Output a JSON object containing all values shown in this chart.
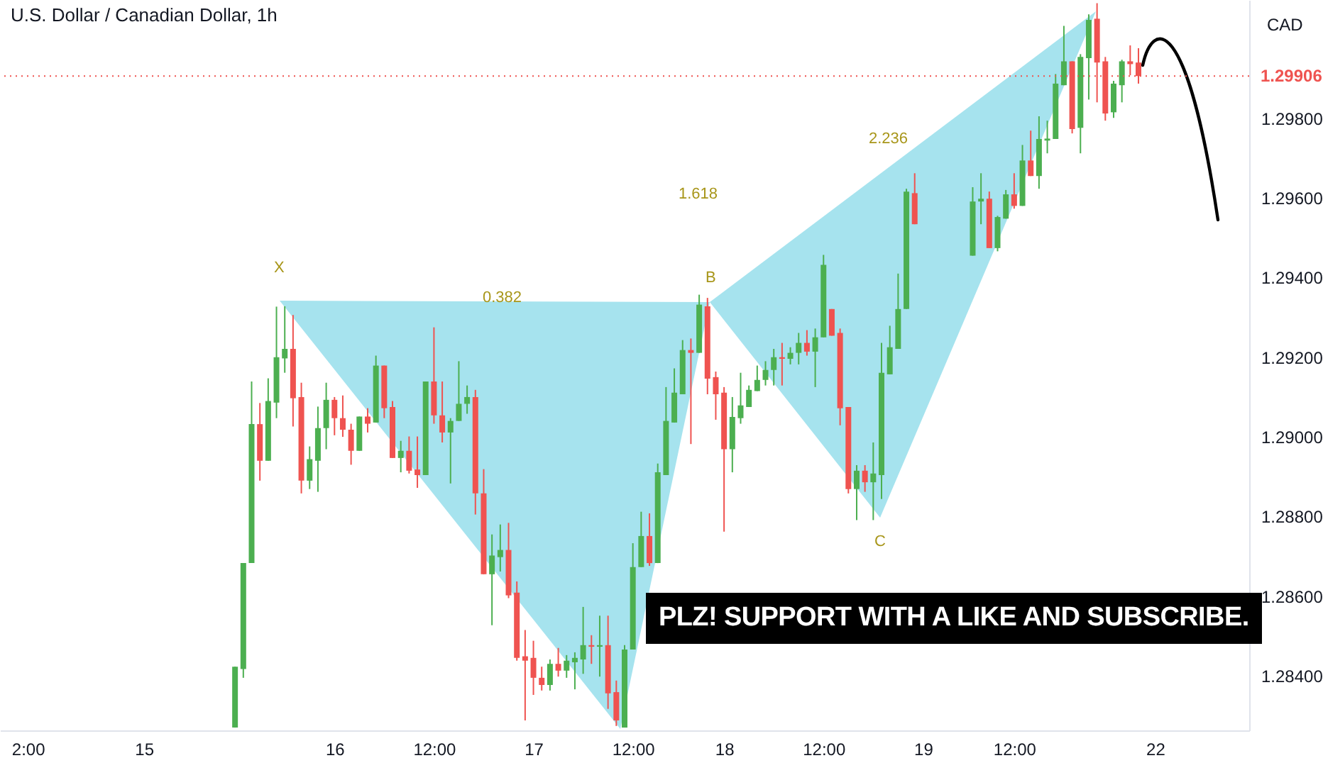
{
  "chart_data": {
    "type": "candlestick",
    "title": "U.S. Dollar / Canadian Dollar, 1h",
    "ylabel": "CAD",
    "categories": [
      null,
      null,
      "2:00",
      null,
      null,
      null,
      null,
      null,
      null,
      null,
      null,
      null,
      null,
      null,
      null,
      null,
      "15",
      null,
      null,
      null,
      null,
      null,
      null,
      null,
      null,
      null,
      null,
      null,
      null,
      null,
      null,
      null,
      null,
      null,
      null,
      null,
      null,
      null,
      null,
      "16",
      null,
      null,
      null,
      null,
      null,
      null,
      null,
      null,
      null,
      null,
      null,
      "12:00",
      null,
      null,
      null,
      null,
      null,
      null,
      null,
      null,
      null,
      null,
      null,
      "17",
      null,
      null,
      null,
      null,
      null,
      null,
      null,
      null,
      null,
      null,
      null,
      "12:00",
      null,
      null,
      null,
      null,
      null,
      null,
      null,
      null,
      null,
      null,
      "18",
      null,
      null,
      null,
      null,
      null,
      null,
      null,
      null,
      null,
      null,
      null,
      "12:00",
      null,
      null,
      null,
      null,
      null,
      null,
      null,
      null,
      null,
      null,
      null,
      "19",
      null,
      null,
      null,
      null,
      null,
      null,
      null,
      null,
      null,
      null,
      "12:00",
      null,
      null,
      null,
      null,
      null,
      null,
      null,
      null,
      null,
      null,
      null,
      null,
      null,
      null,
      null,
      null,
      "22",
      null,
      null,
      null,
      null,
      null,
      null,
      null,
      null,
      null,
      null
    ],
    "ohlc": [
      null,
      null,
      null,
      null,
      null,
      null,
      null,
      null,
      null,
      null,
      null,
      null,
      null,
      null,
      null,
      null,
      null,
      null,
      null,
      null,
      null,
      null,
      null,
      null,
      null,
      null,
      null,
      [
        1.2827,
        1.28423,
        1.2827,
        1.28423
      ],
      [
        1.28417,
        1.28683,
        1.28395,
        1.28683
      ],
      [
        1.28683,
        1.29139,
        1.28683,
        1.29032
      ],
      [
        1.29032,
        1.29085,
        1.2889,
        1.2894
      ],
      [
        1.2894,
        1.29147,
        1.2894,
        1.2909
      ],
      [
        1.29086,
        1.29327,
        1.29047,
        1.292
      ],
      [
        1.29197,
        1.29328,
        1.29161,
        1.29221
      ],
      [
        1.29221,
        1.29306,
        1.29026,
        1.29097
      ],
      [
        1.291,
        1.29136,
        1.28858,
        1.2889
      ],
      [
        1.2889,
        1.28976,
        1.28869,
        1.28944
      ],
      [
        1.2894,
        1.29076,
        1.28862,
        1.29022
      ],
      [
        1.29022,
        1.29136,
        1.28969,
        1.29093
      ],
      [
        1.29093,
        1.291,
        1.29004,
        1.29047
      ],
      [
        1.29047,
        1.29104,
        1.29,
        1.29018
      ],
      [
        1.29018,
        1.29033,
        1.2893,
        1.28965
      ],
      [
        1.28965,
        1.29051,
        1.28965,
        1.29051
      ],
      [
        1.29051,
        1.29072,
        1.29011,
        1.29033
      ],
      [
        1.29036,
        1.29204,
        1.29036,
        1.29179
      ],
      [
        1.29179,
        1.29179,
        1.29047,
        1.29072
      ],
      [
        1.29075,
        1.2909,
        1.28947,
        1.28947
      ],
      [
        1.28947,
        1.2899,
        1.28911,
        1.28965
      ],
      [
        1.28965,
        1.29001,
        1.28908,
        1.28915
      ],
      [
        1.28918,
        1.29001,
        1.28872,
        1.28904
      ],
      [
        1.28904,
        1.29139,
        1.28904,
        1.29139
      ],
      [
        1.29139,
        1.29275,
        1.29033,
        1.29054
      ],
      [
        1.29054,
        1.29139,
        1.28986,
        1.29011
      ],
      [
        1.29011,
        1.29047,
        1.28883,
        1.2904
      ],
      [
        1.2904,
        1.2919,
        1.2904,
        1.29083
      ],
      [
        1.29083,
        1.29129,
        1.29058,
        1.291
      ],
      [
        1.291,
        1.29118,
        1.28805,
        1.28858
      ],
      [
        1.28858,
        1.28919,
        1.28655,
        1.28655
      ],
      [
        1.28655,
        1.28755,
        1.28527,
        1.28702
      ],
      [
        1.28698,
        1.2878,
        1.28662,
        1.28716
      ],
      [
        1.28716,
        1.28784,
        1.28595,
        1.28602
      ],
      [
        1.28609,
        1.28637,
        1.28438,
        1.28445
      ],
      [
        1.28449,
        1.28515,
        1.28288,
        1.28438
      ],
      [
        1.28445,
        1.28488,
        1.28352,
        1.28395
      ],
      [
        1.28395,
        1.28423,
        1.28363,
        1.28377
      ],
      [
        1.28377,
        1.28441,
        1.28363,
        1.2843
      ],
      [
        1.2843,
        1.2847,
        1.28398,
        1.28413
      ],
      [
        1.28413,
        1.28452,
        1.28395,
        1.28438
      ],
      [
        1.28434,
        1.28459,
        1.28366,
        1.28445
      ],
      [
        1.28441,
        1.28573,
        1.28405,
        1.28477
      ],
      [
        1.28477,
        1.28502,
        1.2843,
        1.28473
      ],
      [
        1.28473,
        1.28551,
        1.28398,
        1.28477
      ],
      [
        1.28477,
        1.28551,
        1.28317,
        1.28356
      ],
      [
        1.28359,
        1.28388,
        1.28274,
        1.28288
      ],
      [
        1.2827,
        1.28477,
        1.2827,
        1.28466
      ],
      [
        1.28466,
        1.28733,
        1.28466,
        1.28673
      ],
      [
        1.28673,
        1.28812,
        1.28673,
        1.28751
      ],
      [
        1.28751,
        1.28808,
        1.28676,
        1.28683
      ],
      [
        1.28683,
        1.28933,
        1.28683,
        1.28911
      ],
      [
        1.28904,
        1.29125,
        1.28904,
        1.2904
      ],
      [
        1.29036,
        1.29172,
        1.29036,
        1.29111
      ],
      [
        1.29107,
        1.29243,
        1.29107,
        1.29218
      ],
      [
        1.29218,
        1.29247,
        1.28982,
        1.29211
      ],
      [
        1.29211,
        1.29357,
        1.29211,
        1.29332
      ],
      [
        1.29328,
        1.29349,
        1.29107,
        1.29146
      ],
      [
        1.2915,
        1.29164,
        1.29043,
        1.29107
      ],
      [
        1.29111,
        1.29125,
        1.28762,
        1.28969
      ],
      [
        1.28969,
        1.291,
        1.28911,
        1.2905
      ],
      [
        1.29047,
        1.29161,
        1.29033,
        1.29079
      ],
      [
        1.29075,
        1.29129,
        1.29075,
        1.29118
      ],
      [
        1.29115,
        1.29179,
        1.29115,
        1.29143
      ],
      [
        1.29143,
        1.2919,
        1.29129,
        1.29168
      ],
      [
        1.29168,
        1.29221,
        1.29129,
        1.292
      ],
      [
        1.292,
        1.29236,
        1.29129,
        1.29196
      ],
      [
        1.29196,
        1.29225,
        1.29182,
        1.29211
      ],
      [
        1.29211,
        1.29261,
        1.29182,
        1.29236
      ],
      [
        1.29236,
        1.29268,
        1.29204,
        1.29214
      ],
      [
        1.29214,
        1.29272,
        1.29125,
        1.2925
      ],
      [
        1.2925,
        1.29457,
        1.2925,
        1.29432
      ],
      [
        1.29321,
        1.29321,
        1.29254,
        1.29254
      ],
      [
        1.29261,
        1.29272,
        1.29029,
        1.29072
      ],
      [
        1.29075,
        1.29075,
        1.28858,
        1.28869
      ],
      [
        1.28869,
        1.28929,
        1.28791,
        1.28915
      ],
      [
        1.28915,
        1.28929,
        1.28862,
        1.28886
      ],
      [
        1.28886,
        1.28986,
        1.28791,
        1.28908
      ],
      [
        1.28904,
        1.29236,
        1.28844,
        1.29161
      ],
      [
        1.29157,
        1.29279,
        1.29157,
        1.29225
      ],
      [
        1.29221,
        1.2941,
        1.29221,
        1.29321
      ],
      [
        1.29321,
        1.29623,
        1.29321,
        1.29616
      ],
      [
        1.29612,
        1.29662,
        1.29534,
        1.29534
      ],
      null,
      null,
      null,
      null,
      null,
      null,
      [
        1.29455,
        1.29627,
        1.29455,
        1.29591
      ],
      [
        1.29591,
        1.29662,
        1.29534,
        1.29598
      ],
      [
        1.29598,
        1.29616,
        1.29474,
        1.29474
      ],
      [
        1.29474,
        1.29555,
        1.29466,
        1.29552
      ],
      [
        1.29548,
        1.2962,
        1.29548,
        1.29609
      ],
      [
        1.29609,
        1.29662,
        1.29573,
        1.2958
      ],
      [
        1.2958,
        1.29733,
        1.2958,
        1.29694
      ],
      [
        1.29694,
        1.29769,
        1.29655,
        1.29655
      ],
      [
        1.29655,
        1.29805,
        1.29623,
        1.29748
      ],
      [
        1.29744,
        1.29794,
        1.29712,
        1.29749
      ],
      [
        1.29748,
        1.29911,
        1.29748,
        1.29887
      ],
      [
        1.29883,
        1.30032,
        1.29883,
        1.29943
      ],
      [
        1.29943,
        1.29943,
        1.29762,
        1.29773
      ],
      [
        1.29776,
        1.29961,
        1.29712,
        1.29954
      ],
      [
        1.29951,
        1.30061,
        1.29847,
        1.30047
      ],
      [
        1.3005,
        1.30089,
        1.2984,
        1.2994
      ],
      [
        1.29943,
        1.29954,
        1.29794,
        1.29812
      ],
      [
        1.29815,
        1.29894,
        1.29801,
        1.29887
      ],
      [
        1.29883,
        1.29947,
        1.2984,
        1.29943
      ],
      [
        1.29943,
        1.29983,
        1.29908,
        1.29936
      ],
      [
        1.2994,
        1.29976,
        1.29887,
        1.29906
      ],
      null,
      null,
      null,
      null,
      null,
      null,
      null,
      null,
      null,
      null,
      null,
      null
    ],
    "ylim": [
      1.28263,
      1.30097
    ],
    "yticks": [
      {
        "value": 1.284,
        "label": "1.28400"
      },
      {
        "value": 1.286,
        "label": "1.28600"
      },
      {
        "value": 1.288,
        "label": "1.28800"
      },
      {
        "value": 1.29,
        "label": "1.29000"
      },
      {
        "value": 1.292,
        "label": "1.29200"
      },
      {
        "value": 1.294,
        "label": "1.29400"
      },
      {
        "value": 1.296,
        "label": "1.29600"
      },
      {
        "value": 1.298,
        "label": "1.29800"
      }
    ],
    "ref_lines": [
      {
        "axis": "y",
        "value": 1.29906,
        "label": "1.29906",
        "color": "#ef5350",
        "line_style": "dotted"
      }
    ],
    "annotations": [
      "X",
      "0.382",
      "1.618",
      "B",
      "2.236",
      "C",
      "PLZ! SUPPORT WITH A LIKE AND SUBSCRIBE."
    ]
  }
}
